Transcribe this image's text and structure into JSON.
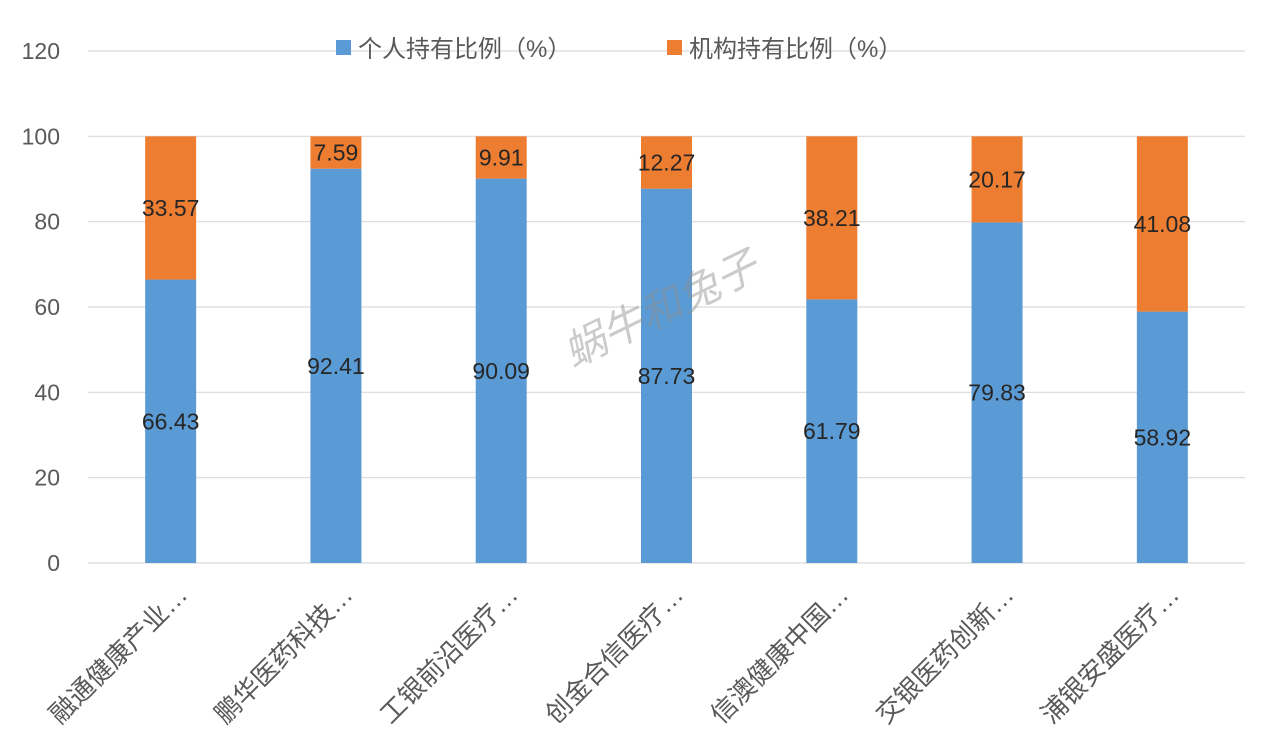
{
  "chart_data": {
    "type": "bar",
    "stacked": true,
    "title": "",
    "xlabel": "",
    "ylabel": "",
    "categories": [
      "融通健康产业…",
      "鹏华医药科技…",
      "工银前沿医疗…",
      "创金合信医疗…",
      "信澳健康中国…",
      "交银医药创新…",
      "浦银安盛医疗…"
    ],
    "series": [
      {
        "name": "个人持有比例（%）",
        "color": "#5B9BD5",
        "values": [
          66.43,
          92.41,
          90.09,
          87.73,
          61.79,
          79.83,
          58.92
        ]
      },
      {
        "name": "机构持有比例（%）",
        "color": "#ED7D31",
        "values": [
          33.57,
          7.59,
          9.91,
          12.27,
          38.21,
          20.17,
          41.08
        ]
      }
    ],
    "ylim": [
      0,
      120
    ],
    "yticks": [
      0,
      20,
      40,
      60,
      80,
      100,
      120
    ],
    "grid": true,
    "legend": "top",
    "watermark": "蜗牛和兔子"
  }
}
